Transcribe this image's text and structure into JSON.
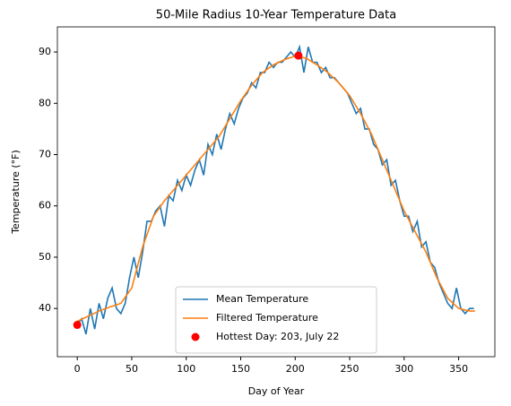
{
  "chart_data": {
    "type": "line",
    "title": "50-Mile Radius 10-Year Temperature Data",
    "xlabel": "Day of Year",
    "ylabel": "Temperature (°F)",
    "xlim": [
      -18.25,
      383.25
    ],
    "ylim": [
      30.6,
      94.9
    ],
    "xticks": [
      0,
      50,
      100,
      150,
      200,
      250,
      300,
      350
    ],
    "yticks": [
      40,
      50,
      60,
      70,
      80,
      90
    ],
    "legend": "lower center",
    "series": [
      {
        "name": "Mean Temperature",
        "color": "#1f77b4",
        "x": [
          0,
          4,
          8,
          12,
          16,
          20,
          24,
          28,
          32,
          36,
          40,
          44,
          48,
          52,
          56,
          60,
          64,
          68,
          72,
          76,
          80,
          84,
          88,
          92,
          96,
          100,
          104,
          108,
          112,
          116,
          120,
          124,
          128,
          132,
          136,
          140,
          144,
          148,
          152,
          156,
          160,
          164,
          168,
          172,
          176,
          180,
          184,
          188,
          192,
          196,
          200,
          204,
          208,
          212,
          216,
          220,
          224,
          228,
          232,
          236,
          240,
          244,
          248,
          252,
          256,
          260,
          264,
          268,
          272,
          276,
          280,
          284,
          288,
          292,
          296,
          300,
          304,
          308,
          312,
          316,
          320,
          324,
          328,
          332,
          336,
          340,
          344,
          348,
          352,
          356,
          360,
          364
        ],
        "values": [
          36.8,
          38,
          35,
          40,
          36,
          41,
          38,
          42,
          44,
          40,
          39,
          41,
          46,
          50,
          46,
          51,
          57,
          57,
          59,
          60,
          56,
          62,
          61,
          65,
          63,
          66,
          64,
          67,
          69,
          66,
          72,
          70,
          74,
          71,
          75,
          78,
          76,
          79,
          81,
          82,
          84,
          83,
          86,
          86,
          88,
          87,
          88,
          88,
          89,
          90,
          89,
          91,
          86,
          91,
          88,
          88,
          86,
          87,
          85,
          85,
          84,
          83,
          82,
          80,
          78,
          79,
          75,
          75,
          72,
          71,
          68,
          69,
          64,
          65,
          61,
          58,
          58,
          55,
          57,
          52,
          53,
          49,
          48,
          45,
          43,
          41,
          40,
          44,
          40,
          39,
          40,
          40
        ]
      },
      {
        "name": "Filtered Temperature",
        "color": "#ff7f0e",
        "x": [
          0,
          10,
          20,
          30,
          40,
          50,
          60,
          70,
          80,
          90,
          100,
          110,
          120,
          130,
          140,
          150,
          160,
          170,
          180,
          190,
          200,
          210,
          220,
          230,
          240,
          250,
          260,
          270,
          280,
          290,
          300,
          310,
          320,
          330,
          340,
          350,
          360,
          365
        ],
        "values": [
          37.5,
          38.5,
          39.5,
          40.3,
          41,
          44,
          52,
          58,
          61,
          63.5,
          66,
          68.5,
          71,
          73.5,
          77,
          80.5,
          83.5,
          86,
          87.5,
          88.5,
          89.2,
          88.8,
          87.5,
          86,
          84,
          81.5,
          78,
          74,
          69,
          64,
          59,
          55,
          51,
          46,
          42,
          40,
          39.5,
          39.5
        ]
      },
      {
        "name": "Hottest Day: 203, July 22",
        "color": "#ff0000",
        "style": "scatter",
        "x": [
          0,
          203
        ],
        "values": [
          36.8,
          89.3
        ]
      }
    ]
  }
}
